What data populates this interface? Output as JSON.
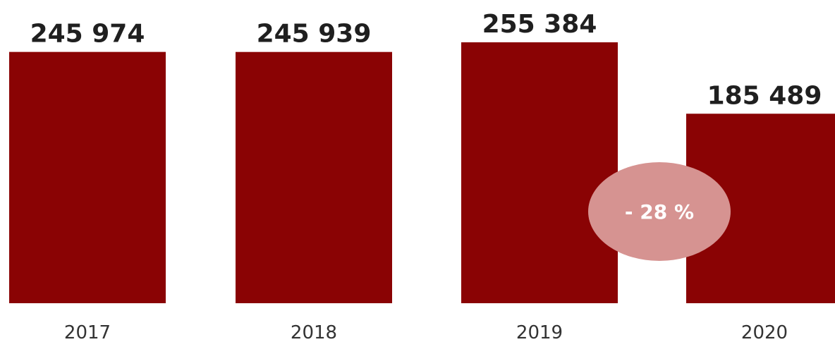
{
  "colors": {
    "bar": "#8a0304",
    "badge": "#d69391",
    "badge_text": "#ffffff",
    "label": "#1f1f1f",
    "tick": "#333333"
  },
  "chart_data": {
    "type": "bar",
    "categories": [
      "2017",
      "2018",
      "2019",
      "2020"
    ],
    "values": [
      245974,
      245939,
      255384,
      185489
    ],
    "value_labels": [
      "245 974",
      "245 939",
      "255 384",
      "185 489"
    ],
    "title": "",
    "xlabel": "",
    "ylabel": "",
    "ylim": [
      0,
      270000
    ],
    "grid": false,
    "legend": "none",
    "annotation": {
      "text": "- 28 %",
      "between": [
        "2019",
        "2020"
      ]
    }
  }
}
